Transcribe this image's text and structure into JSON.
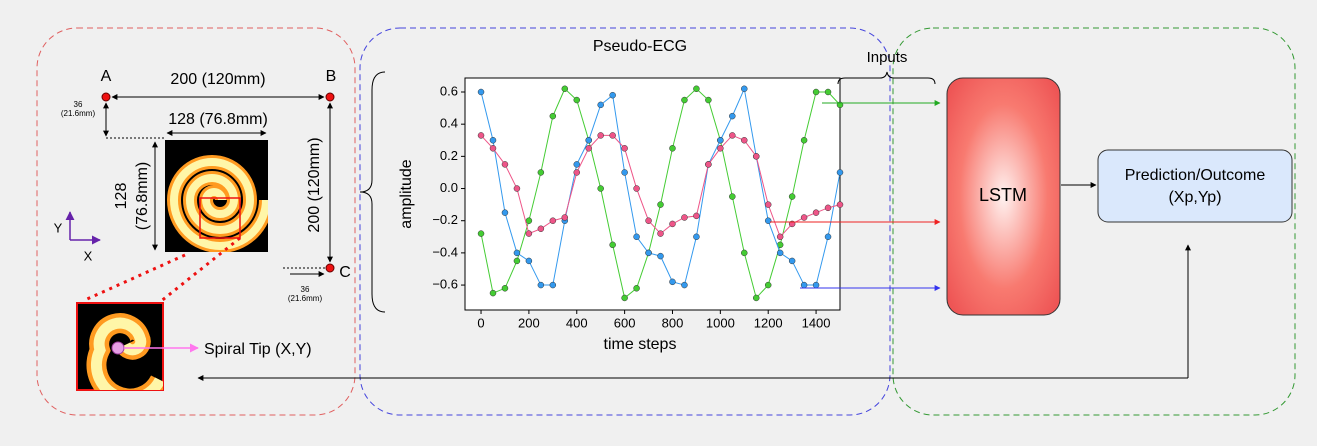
{
  "points": [
    "A",
    "B",
    "C"
  ],
  "dimensions": {
    "top_width": "200 (120mm)",
    "offset_top": [
      "36",
      "(21.6mm)"
    ],
    "image_width": "128 (76.8mm)",
    "image_height": [
      "128",
      "(76.8mm)"
    ],
    "right_height": "200 (120mm)",
    "offset_bottom": [
      "36",
      "(21.6mm)"
    ]
  },
  "axes_icon": {
    "y": "Y",
    "x": "X"
  },
  "spiral_tip_label": "Spiral Tip (X,Y)",
  "chart_data": {
    "type": "line",
    "title": "Pseudo-ECG",
    "x_label": "time steps",
    "y_label": "amplitude",
    "x": [
      0,
      50,
      100,
      150,
      200,
      250,
      300,
      350,
      400,
      450,
      500,
      550,
      600,
      650,
      700,
      750,
      800,
      850,
      900,
      950,
      1000,
      1050,
      1100,
      1150,
      1200,
      1250,
      1300,
      1350,
      1400,
      1450,
      1500
    ],
    "series": [
      {
        "color": "#44cc33",
        "values": [
          -0.28,
          -0.65,
          -0.62,
          -0.45,
          -0.2,
          0.1,
          0.45,
          0.62,
          0.55,
          0.3,
          0.0,
          -0.35,
          -0.68,
          -0.62,
          -0.4,
          -0.1,
          0.25,
          0.55,
          0.62,
          0.55,
          0.3,
          -0.05,
          -0.4,
          -0.68,
          -0.6,
          -0.35,
          -0.05,
          0.3,
          0.6,
          0.6,
          0.52
        ]
      },
      {
        "color": "#3399ee",
        "values": [
          0.6,
          0.3,
          -0.15,
          -0.4,
          -0.45,
          -0.6,
          -0.6,
          -0.2,
          0.15,
          0.3,
          0.52,
          0.58,
          0.1,
          -0.3,
          -0.4,
          -0.42,
          -0.58,
          -0.6,
          -0.3,
          0.15,
          0.3,
          0.45,
          0.62,
          0.2,
          -0.2,
          -0.4,
          -0.45,
          -0.6,
          -0.6,
          -0.3,
          0.1
        ]
      },
      {
        "color": "#ee5588",
        "values": [
          0.33,
          0.25,
          0.15,
          0.0,
          -0.28,
          -0.25,
          -0.2,
          -0.18,
          0.1,
          0.25,
          0.33,
          0.33,
          0.25,
          0.0,
          -0.2,
          -0.28,
          -0.22,
          -0.18,
          -0.17,
          0.15,
          0.25,
          0.33,
          0.3,
          0.2,
          -0.1,
          -0.3,
          -0.22,
          -0.18,
          -0.15,
          -0.12,
          -0.1
        ]
      }
    ],
    "markers": true,
    "xlim": [
      -67,
      1500
    ],
    "ylim": [
      -0.755,
      0.687
    ],
    "xticks": [
      0,
      200,
      400,
      600,
      800,
      1000,
      1200,
      1400
    ],
    "yticks": [
      {
        "value": -0.6,
        "label": "−0.6"
      },
      {
        "value": -0.4,
        "label": "−0.4"
      },
      {
        "value": -0.2,
        "label": "−0.2"
      },
      {
        "value": 0,
        "label": "0.0"
      },
      0.2,
      0.4,
      0.6
    ]
  },
  "inputs_label": "Inputs",
  "model": "LSTM",
  "output": [
    "Prediction/Outcome",
    "(Xp,Yp)"
  ]
}
